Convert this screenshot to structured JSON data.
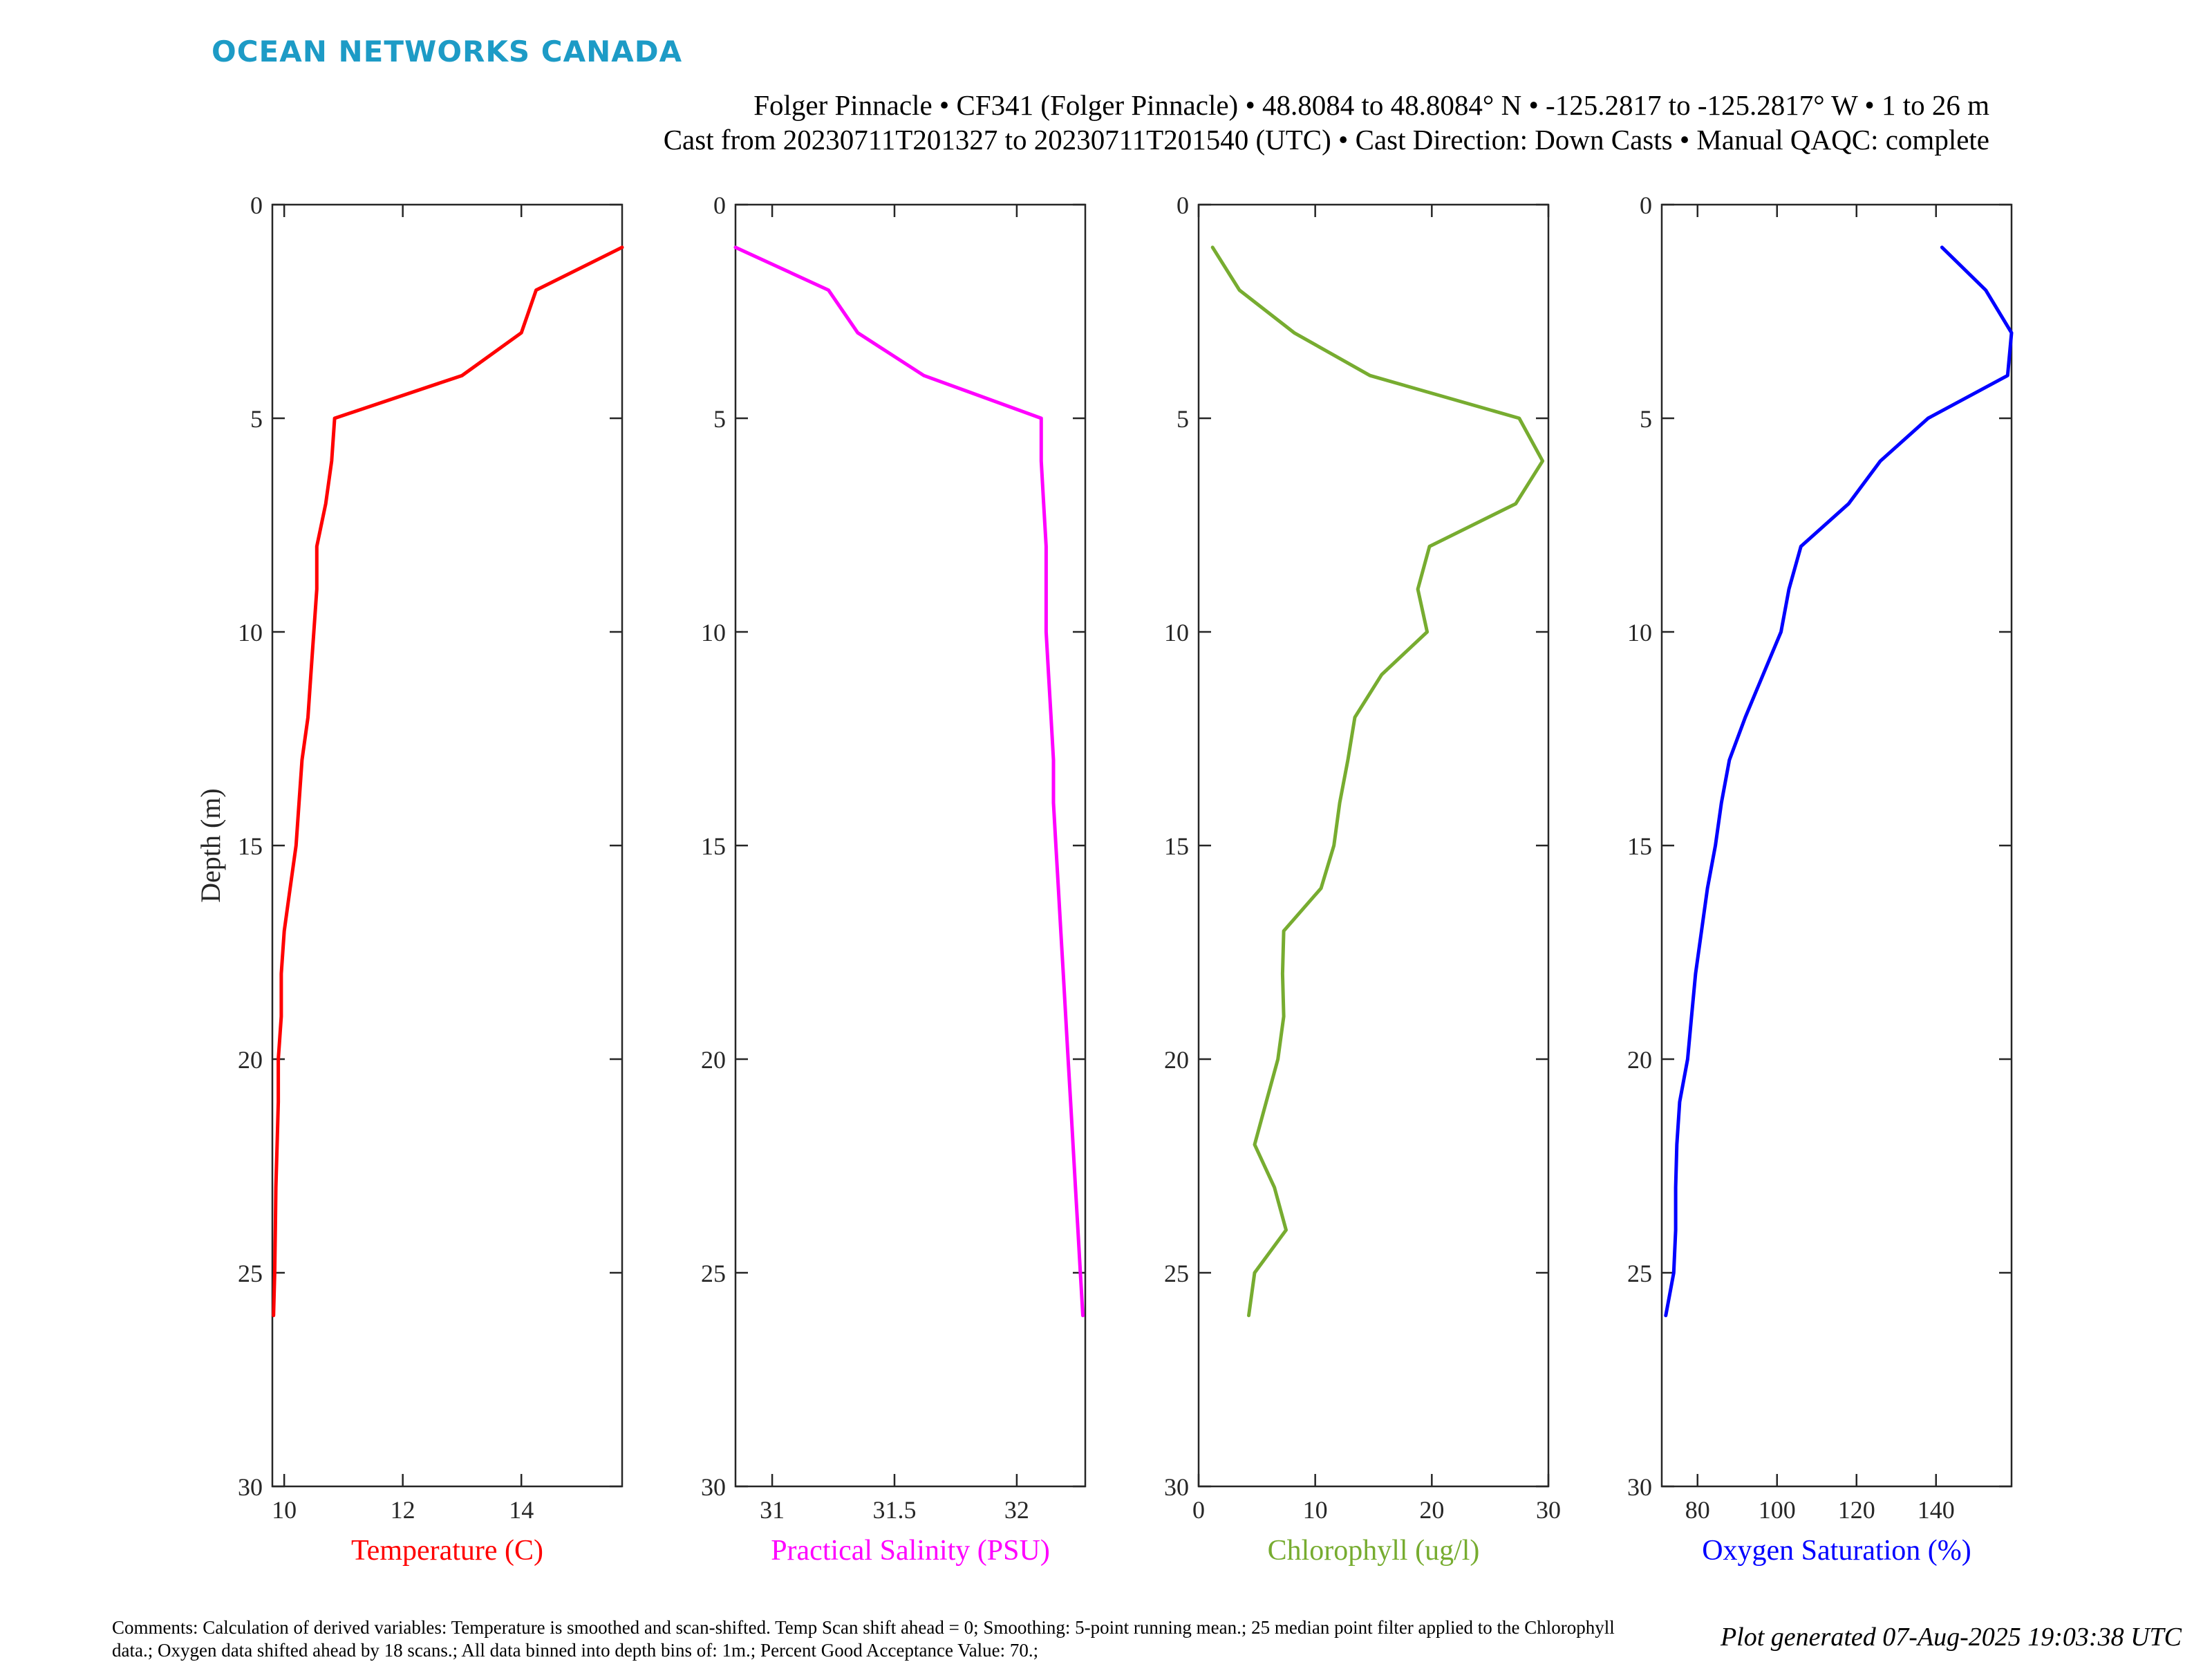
{
  "header": {
    "logo": "OCEAN NETWORKS CANADA",
    "title_line1": "Folger Pinnacle • CF341 (Folger Pinnacle) • 48.8084 to 48.8084° N • -125.2817 to -125.2817° W • 1 to 26 m",
    "title_line2": "Cast from 20230711T201327 to 20230711T201540 (UTC) • Cast Direction: Down Casts • Manual QAQC: complete"
  },
  "footer": {
    "comments": "Comments: Calculation of derived variables: Temperature is smoothed and scan-shifted. Temp Scan shift ahead = 0; Smoothing: 5-point running mean.; 25 median point filter applied to the Chlorophyll data.; Oxygen data shifted ahead by 18 scans.; All data binned into depth bins of: 1m.; Percent Good Acceptance Value: 70.;",
    "generated": "Plot generated 07-Aug-2025 19:03:38 UTC"
  },
  "colors": {
    "temperature": "#ff0000",
    "salinity": "#ff00ff",
    "chlorophyll": "#77ac30",
    "oxygen": "#0000ff"
  },
  "chart_data": [
    {
      "type": "line",
      "xlabel": "Temperature (C)",
      "ylabel": "Depth (m)",
      "xlim": [
        9.8,
        15.7
      ],
      "ylim": [
        0,
        30
      ],
      "y_reversed": true,
      "xticks": [
        10,
        12,
        14
      ],
      "yticks": [
        0,
        5,
        10,
        15,
        20,
        25,
        30
      ],
      "color": "#ff0000",
      "x": [
        15.7,
        14.25,
        14.0,
        13.0,
        10.85,
        10.8,
        10.7,
        10.55,
        10.55,
        10.5,
        10.45,
        10.4,
        10.3,
        10.25,
        10.2,
        10.1,
        10.0,
        9.95,
        9.95,
        9.9,
        9.9,
        9.88,
        9.86,
        9.85,
        9.84,
        9.82
      ],
      "y": [
        1,
        2,
        3,
        4,
        5,
        6,
        7,
        8,
        9,
        10,
        11,
        12,
        13,
        14,
        15,
        16,
        17,
        18,
        19,
        20,
        21,
        22,
        23,
        24,
        25,
        26
      ]
    },
    {
      "type": "line",
      "xlabel": "Practical Salinity (PSU)",
      "ylabel": "",
      "xlim": [
        30.85,
        32.28
      ],
      "ylim": [
        0,
        30
      ],
      "y_reversed": true,
      "xticks": [
        31,
        31.5,
        32
      ],
      "yticks": [
        0,
        5,
        10,
        15,
        20,
        25,
        30
      ],
      "color": "#ff00ff",
      "x": [
        30.85,
        31.23,
        31.35,
        31.62,
        32.1,
        32.1,
        32.11,
        32.12,
        32.12,
        32.12,
        32.13,
        32.14,
        32.15,
        32.15,
        32.16,
        32.17,
        32.18,
        32.19,
        32.2,
        32.21,
        32.22,
        32.23,
        32.24,
        32.25,
        32.26,
        32.27
      ],
      "y": [
        1,
        2,
        3,
        4,
        5,
        6,
        7,
        8,
        9,
        10,
        11,
        12,
        13,
        14,
        15,
        16,
        17,
        18,
        19,
        20,
        21,
        22,
        23,
        24,
        25,
        26
      ]
    },
    {
      "type": "line",
      "xlabel": "Chlorophyll (ug/l)",
      "ylabel": "",
      "xlim": [
        0,
        30
      ],
      "ylim": [
        0,
        30
      ],
      "y_reversed": true,
      "xticks": [
        0,
        10,
        20,
        30
      ],
      "yticks": [
        0,
        5,
        10,
        15,
        20,
        25,
        30
      ],
      "color": "#77ac30",
      "x": [
        1.2,
        3.5,
        8.2,
        14.7,
        27.5,
        29.5,
        27.2,
        19.8,
        18.8,
        19.6,
        15.7,
        13.4,
        12.8,
        12.1,
        11.6,
        10.5,
        7.3,
        7.2,
        7.3,
        6.8,
        5.8,
        4.8,
        6.5,
        7.5,
        4.8,
        4.3
      ],
      "y": [
        1,
        2,
        3,
        4,
        5,
        6,
        7,
        8,
        9,
        10,
        11,
        12,
        13,
        14,
        15,
        16,
        17,
        18,
        19,
        20,
        21,
        22,
        23,
        24,
        25,
        26
      ]
    },
    {
      "type": "line",
      "xlabel": "Oxygen Saturation (%)",
      "ylabel": "",
      "xlim": [
        71,
        159
      ],
      "ylim": [
        0,
        30
      ],
      "y_reversed": true,
      "xticks": [
        80,
        100,
        120,
        140
      ],
      "yticks": [
        0,
        5,
        10,
        15,
        20,
        25,
        30
      ],
      "color": "#0000ff",
      "x": [
        141.5,
        152.5,
        159,
        158,
        138,
        126,
        118,
        106,
        103,
        101,
        96.5,
        92,
        88,
        86,
        84.5,
        82.5,
        81,
        79.5,
        78.5,
        77.5,
        75.5,
        74.8,
        74.5,
        74.5,
        74,
        72
      ],
      "y": [
        1,
        2,
        3,
        4,
        5,
        6,
        7,
        8,
        9,
        10,
        11,
        12,
        13,
        14,
        15,
        16,
        17,
        18,
        19,
        20,
        21,
        22,
        23,
        24,
        25,
        26
      ]
    }
  ]
}
